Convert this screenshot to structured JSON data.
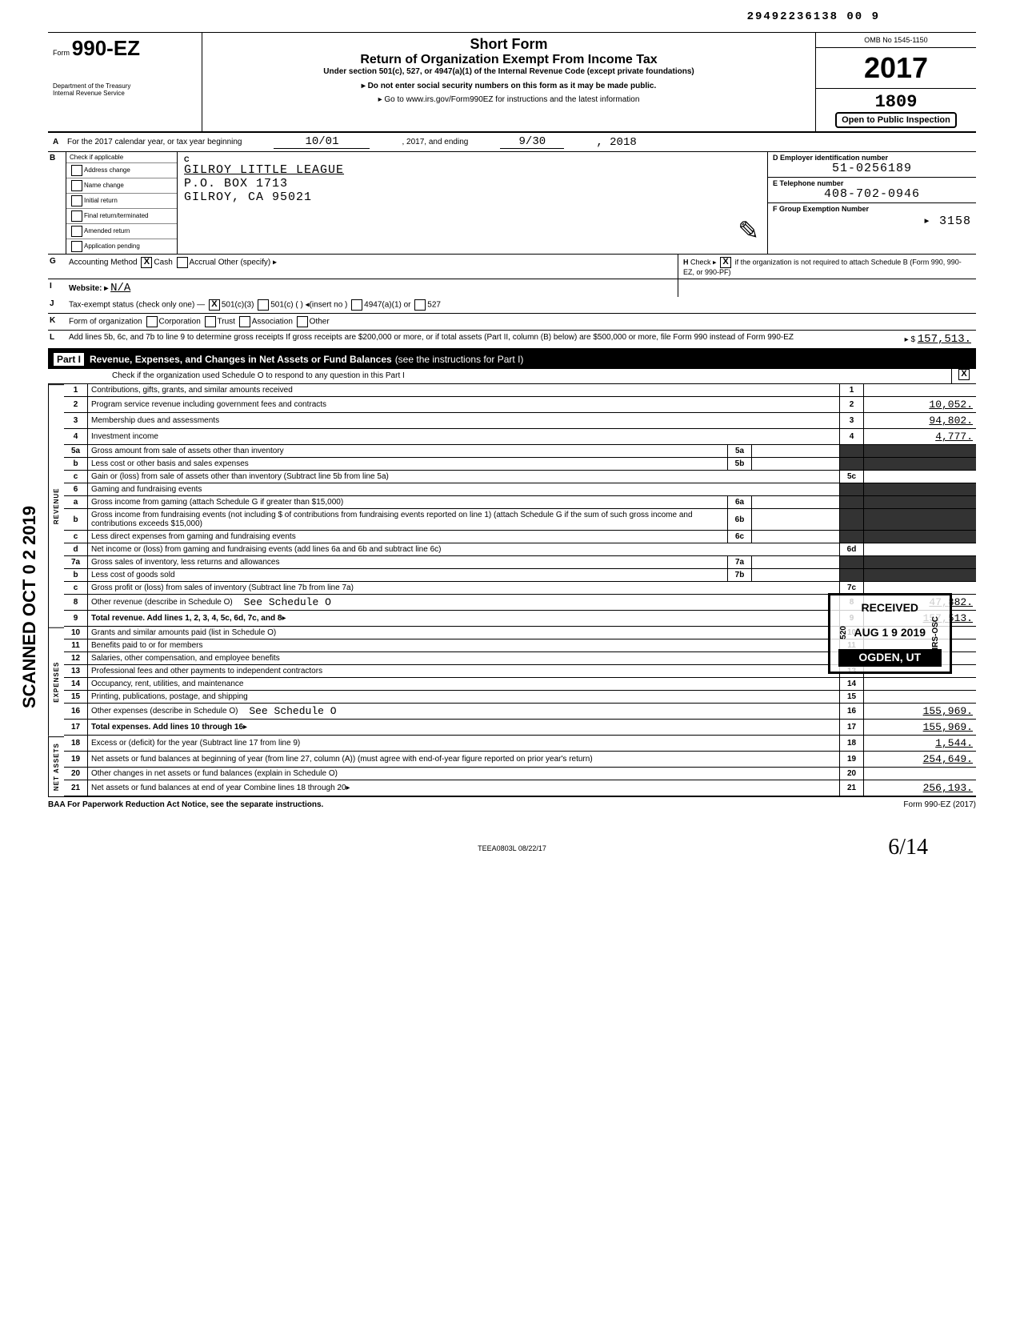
{
  "doc_number": "29492236138 00   9",
  "omb": "OMB No 1545-1150",
  "form_prefix": "Form",
  "form_number": "990-EZ",
  "short_form": "Short Form",
  "title": "Return of Organization Exempt From Income Tax",
  "subtitle1": "Under section 501(c), 527, or 4947(a)(1) of the Internal Revenue Code (except private foundations)",
  "subtitle2": "▸ Do not enter social security numbers on this form as it may be made public.",
  "subtitle3": "▸ Go to www.irs.gov/Form990EZ for instructions and the latest information",
  "dept": "Department of the Treasury\nInternal Revenue Service",
  "tax_year": "2017",
  "open_inspection": "Open to Public Inspection",
  "stamp_code": "1809",
  "rowA": {
    "text": "For the 2017 calendar year, or tax year beginning",
    "begin": "10/01",
    "mid": ", 2017, and ending",
    "end": "9/30",
    "yearend": ", 2018"
  },
  "B": {
    "header": "Check if applicable",
    "items": [
      "Address change",
      "Name change",
      "Initial return",
      "Final return/terminated",
      "Amended return",
      "Application pending"
    ]
  },
  "C": {
    "name": "GILROY LITTLE LEAGUE",
    "addr1": "P.O. BOX 1713",
    "addr2": "GILROY, CA 95021"
  },
  "D": {
    "label": "D  Employer identification number",
    "value": "51-0256189"
  },
  "E": {
    "label": "E  Telephone number",
    "value": "408-702-0946"
  },
  "F": {
    "label": "F  Group Exemption Number",
    "value": "▸ 3158"
  },
  "G": {
    "label": "Accounting Method",
    "cash": "Cash",
    "accrual": "Accrual",
    "other": "Other (specify) ▸"
  },
  "H": {
    "text": "Check ▸",
    "rest": "if the organization is not required to attach Schedule B (Form 990, 990-EZ, or 990-PF)"
  },
  "I": {
    "label": "Website: ▸",
    "value": "N/A"
  },
  "J": {
    "label": "Tax-exempt status (check only one) —",
    "o1": "501(c)(3)",
    "o2": "501(c) (        ) ◂(insert no )",
    "o3": "4947(a)(1) or",
    "o4": "527"
  },
  "K": {
    "label": "Form of organization",
    "o1": "Corporation",
    "o2": "Trust",
    "o3": "Association",
    "o4": "Other"
  },
  "L": {
    "text": "Add lines 5b, 6c, and 7b to line 9 to determine gross receipts  If gross receipts are $200,000 or more, or if total assets (Part II, column (B) below) are $500,000 or more, file Form 990 instead of Form 990-EZ",
    "arrow": "▸ $",
    "value": "157,513."
  },
  "part1": {
    "label": "Part I",
    "title": "Revenue, Expenses, and Changes in Net Assets or Fund Balances",
    "note": "(see the instructions for Part I)",
    "sub": "Check if the organization used Schedule O to respond to any question in this Part I",
    "checked": "X"
  },
  "side_labels": {
    "rev": "REVENUE",
    "exp": "EXPENSES",
    "net": "NET ASSETS"
  },
  "lines": {
    "l1": {
      "n": "1",
      "t": "Contributions, gifts, grants, and similar amounts received",
      "v": ""
    },
    "l2": {
      "n": "2",
      "t": "Program service revenue including government fees and contracts",
      "v": "10,052."
    },
    "l3": {
      "n": "3",
      "t": "Membership dues and assessments",
      "v": "94,802."
    },
    "l4": {
      "n": "4",
      "t": "Investment income",
      "v": "4,777."
    },
    "l5a": {
      "n": "5a",
      "t": "Gross amount from sale of assets other than inventory",
      "box": "5a",
      "bv": ""
    },
    "l5b": {
      "n": "b",
      "t": "Less  cost or other basis and sales expenses",
      "box": "5b",
      "bv": ""
    },
    "l5c": {
      "n": "c",
      "t": "Gain or (loss) from sale of assets other than inventory (Subtract line 5b from line 5a)",
      "rn": "5c",
      "v": ""
    },
    "l6": {
      "n": "6",
      "t": "Gaming and fundraising events"
    },
    "l6a": {
      "n": "a",
      "t": "Gross income from gaming (attach Schedule G if greater than $15,000)",
      "box": "6a",
      "bv": ""
    },
    "l6b": {
      "n": "b",
      "t": "Gross income from fundraising events (not including $                           of contributions from fundraising events reported on line 1) (attach Schedule G if the sum of such gross income and contributions exceeds $15,000)",
      "box": "6b",
      "bv": ""
    },
    "l6c": {
      "n": "c",
      "t": "Less  direct expenses from gaming and fundraising events",
      "box": "6c",
      "bv": ""
    },
    "l6d": {
      "n": "d",
      "t": "Net income or (loss) from gaming and fundraising events (add lines 6a and 6b and subtract line 6c)",
      "rn": "6d",
      "v": ""
    },
    "l7a": {
      "n": "7a",
      "t": "Gross sales of inventory, less returns and allowances",
      "box": "7a",
      "bv": ""
    },
    "l7b": {
      "n": "b",
      "t": "Less  cost of goods sold",
      "box": "7b",
      "bv": ""
    },
    "l7c": {
      "n": "c",
      "t": "Gross profit or (loss) from sales of inventory (Subtract line 7b from line 7a)",
      "rn": "7c",
      "v": ""
    },
    "l8": {
      "n": "8",
      "t": "Other revenue (describe in Schedule O)",
      "extra": "See Schedule O",
      "v": "47,882."
    },
    "l9": {
      "n": "9",
      "t": "Total revenue. Add lines 1, 2, 3, 4, 5c, 6d, 7c, and 8",
      "arrow": "▸",
      "v": "157,513."
    },
    "l10": {
      "n": "10",
      "t": "Grants and similar amounts paid (list in Schedule O)",
      "v": ""
    },
    "l11": {
      "n": "11",
      "t": "Benefits paid to or for members",
      "v": ""
    },
    "l12": {
      "n": "12",
      "t": "Salaries, other compensation, and employee benefits",
      "v": ""
    },
    "l13": {
      "n": "13",
      "t": "Professional fees and other payments to independent contractors",
      "v": ""
    },
    "l14": {
      "n": "14",
      "t": "Occupancy, rent, utilities, and maintenance",
      "v": ""
    },
    "l15": {
      "n": "15",
      "t": "Printing, publications, postage, and shipping",
      "v": ""
    },
    "l16": {
      "n": "16",
      "t": "Other expenses (describe in Schedule O)",
      "extra": "See Schedule O",
      "v": "155,969."
    },
    "l17": {
      "n": "17",
      "t": "Total expenses. Add lines 10 through 16",
      "arrow": "▸",
      "v": "155,969."
    },
    "l18": {
      "n": "18",
      "t": "Excess or (deficit) for the year (Subtract line 17 from line 9)",
      "v": "1,544."
    },
    "l19": {
      "n": "19",
      "t": "Net assets or fund balances at beginning of year (from line 27, column (A)) (must agree with end-of-year figure reported on prior year's return)",
      "v": "254,649."
    },
    "l20": {
      "n": "20",
      "t": "Other changes in net assets or fund balances (explain in Schedule O)",
      "v": ""
    },
    "l21": {
      "n": "21",
      "t": "Net assets or fund balances at end of year  Combine lines 18 through 20",
      "arrow": "▸",
      "v": "256,193."
    }
  },
  "baa": "BAA  For Paperwork Reduction Act Notice, see the separate instructions.",
  "form_foot": "Form 990-EZ (2017)",
  "teea": "TEEA0803L  08/22/17",
  "scanned": "SCANNED OCT 0 2 2019",
  "received": {
    "l1": "RECEIVED",
    "l2": "AUG  1 9 2019",
    "l3": "OGDEN, UT",
    "side": "IRS-OSC",
    "side2": "520"
  },
  "handwrite": "6/14"
}
